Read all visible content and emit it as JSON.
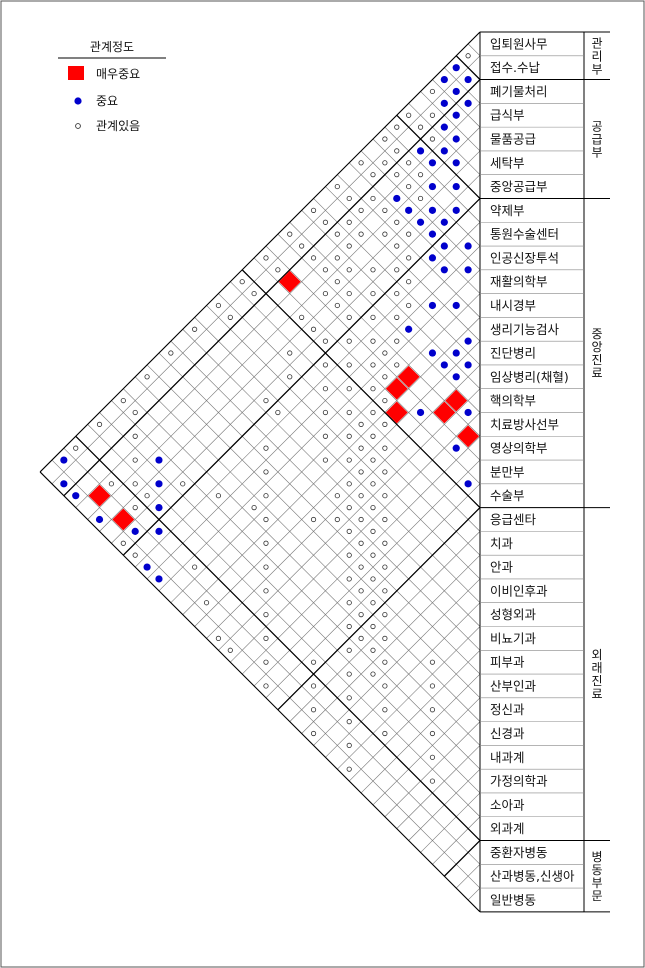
{
  "legend": {
    "title": "관계정도",
    "items": [
      {
        "symbol": "red-diamond",
        "label": "매우중요",
        "color": "#ff0000"
      },
      {
        "symbol": "blue-dot",
        "label": "중요",
        "color": "#0000cc"
      },
      {
        "symbol": "open-circle",
        "label": "관계있음",
        "color": "#333333"
      }
    ]
  },
  "departments": [
    "입퇴원사무",
    "접수.수납",
    "폐기물처리",
    "급식부",
    "물품공급",
    "세탁부",
    "중앙공급부",
    "약제부",
    "통원수술센터",
    "인공신장투석",
    "재활의학부",
    "내시경부",
    "생리기능검사",
    "진단병리",
    "임상병리(채혈)",
    "핵의학부",
    "치료방사선부",
    "영상의학부",
    "분만부",
    "수술부",
    "응급센타",
    "치과",
    "안과",
    "이비인후과",
    "성형외과",
    "비뇨기과",
    "피부과",
    "산부인과",
    "정신과",
    "신경과",
    "내과계",
    "가정의학과",
    "소아과",
    "외과계",
    "중환자병동",
    "산과병동,신생아",
    "일반병동"
  ],
  "groups": [
    {
      "label": "관리부",
      "start": 0,
      "end": 2
    },
    {
      "label": "공급부",
      "start": 2,
      "end": 7
    },
    {
      "label": "중앙진료",
      "start": 7,
      "end": 20
    },
    {
      "label": "외래진료",
      "start": 20,
      "end": 34
    },
    {
      "label": "병동부문",
      "start": 34,
      "end": 37
    }
  ],
  "relations": {
    "very_important": [
      [
        14,
        16
      ],
      [
        16,
        17
      ],
      [
        14,
        17
      ],
      [
        12,
        19
      ],
      [
        11,
        17
      ],
      [
        11,
        18
      ],
      [
        3,
        35
      ],
      [
        5,
        35
      ],
      [
        2,
        18
      ]
    ],
    "important": [
      [
        14,
        13
      ],
      [
        16,
        15
      ],
      [
        16,
        15
      ],
      [
        15,
        11
      ],
      [
        15,
        12
      ],
      [
        13,
        18
      ],
      [
        16,
        14
      ],
      [
        12,
        14
      ],
      [
        13,
        15
      ],
      [
        12,
        13
      ],
      [
        18,
        19
      ],
      [
        16,
        18
      ],
      [
        2,
        5
      ],
      [
        0,
        3
      ],
      [
        1,
        4
      ],
      [
        5,
        9
      ],
      [
        3,
        7
      ],
      [
        4,
        8
      ],
      [
        6,
        9
      ],
      [
        4,
        10
      ],
      [
        7,
        11
      ],
      [
        9,
        13
      ],
      [
        9,
        10
      ],
      [
        10,
        12
      ],
      [
        9,
        15
      ],
      [
        8,
        11
      ],
      [
        5,
        10
      ],
      [
        3,
        6
      ],
      [
        2,
        4
      ],
      [
        3,
        5
      ],
      [
        2,
        3
      ],
      [
        1,
        3
      ],
      [
        0,
        2
      ],
      [
        1,
        2
      ],
      [
        4,
        6
      ],
      [
        6,
        8
      ],
      [
        7,
        10
      ],
      [
        6,
        10
      ],
      [
        5,
        7
      ],
      [
        8,
        9
      ],
      [
        2,
        7
      ],
      [
        3,
        10
      ],
      [
        1,
        36
      ],
      [
        2,
        36
      ],
      [
        4,
        31
      ],
      [
        5,
        32
      ],
      [
        6,
        33
      ],
      [
        7,
        34
      ],
      [
        0,
        35
      ],
      [
        6,
        35
      ],
      [
        4,
        36
      ],
      [
        8,
        36
      ],
      [
        9,
        36
      ]
    ],
    "related": [
      [
        0,
        1
      ],
      [
        1,
        5
      ],
      [
        2,
        6
      ],
      [
        3,
        8
      ],
      [
        4,
        9
      ],
      [
        5,
        11
      ],
      [
        6,
        12
      ],
      [
        7,
        13
      ],
      [
        8,
        14
      ],
      [
        9,
        16
      ],
      [
        10,
        17
      ],
      [
        11,
        19
      ],
      [
        12,
        20
      ],
      [
        13,
        21
      ],
      [
        14,
        22
      ],
      [
        15,
        23
      ],
      [
        16,
        24
      ],
      [
        17,
        25
      ],
      [
        18,
        26
      ],
      [
        19,
        27
      ],
      [
        20,
        28
      ],
      [
        21,
        29
      ],
      [
        22,
        30
      ],
      [
        23,
        31
      ],
      [
        24,
        32
      ],
      [
        25,
        33
      ],
      [
        1,
        8
      ],
      [
        2,
        9
      ],
      [
        3,
        11
      ],
      [
        4,
        12
      ],
      [
        5,
        14
      ],
      [
        6,
        15
      ],
      [
        7,
        16
      ],
      [
        8,
        17
      ],
      [
        9,
        18
      ],
      [
        10,
        19
      ],
      [
        11,
        20
      ],
      [
        12,
        21
      ],
      [
        13,
        22
      ],
      [
        14,
        23
      ],
      [
        15,
        24
      ],
      [
        16,
        25
      ],
      [
        17,
        26
      ],
      [
        18,
        27
      ],
      [
        19,
        28
      ],
      [
        20,
        29
      ],
      [
        21,
        30
      ],
      [
        22,
        31
      ],
      [
        0,
        4
      ],
      [
        1,
        6
      ],
      [
        2,
        8
      ],
      [
        3,
        9
      ],
      [
        4,
        11
      ],
      [
        5,
        12
      ],
      [
        6,
        13
      ],
      [
        7,
        14
      ],
      [
        8,
        15
      ],
      [
        9,
        17
      ],
      [
        10,
        18
      ],
      [
        11,
        21
      ],
      [
        12,
        22
      ],
      [
        13,
        23
      ],
      [
        14,
        24
      ],
      [
        15,
        25
      ],
      [
        16,
        26
      ],
      [
        17,
        27
      ],
      [
        18,
        28
      ],
      [
        19,
        29
      ],
      [
        20,
        30
      ],
      [
        0,
        6
      ],
      [
        0,
        8
      ],
      [
        0,
        10
      ],
      [
        0,
        12
      ],
      [
        0,
        14
      ],
      [
        0,
        16
      ],
      [
        0,
        18
      ],
      [
        0,
        20
      ],
      [
        0,
        22
      ],
      [
        0,
        24
      ],
      [
        0,
        26
      ],
      [
        0,
        28
      ],
      [
        0,
        30
      ],
      [
        0,
        32
      ],
      [
        0,
        34
      ],
      [
        1,
        10
      ],
      [
        1,
        12
      ],
      [
        1,
        14
      ],
      [
        1,
        16
      ],
      [
        1,
        18
      ],
      [
        1,
        20
      ],
      [
        1,
        22
      ],
      [
        2,
        12
      ],
      [
        2,
        14
      ],
      [
        2,
        16
      ],
      [
        3,
        14
      ],
      [
        3,
        16
      ],
      [
        4,
        17
      ],
      [
        4,
        19
      ],
      [
        5,
        19
      ],
      [
        5,
        21
      ],
      [
        6,
        22
      ],
      [
        6,
        24
      ],
      [
        7,
        24
      ],
      [
        8,
        26
      ],
      [
        9,
        27
      ],
      [
        10,
        28
      ],
      [
        11,
        29
      ],
      [
        12,
        30
      ],
      [
        13,
        31
      ],
      [
        14,
        32
      ],
      [
        15,
        33
      ],
      [
        16,
        34
      ],
      [
        17,
        35
      ],
      [
        18,
        36
      ],
      [
        19,
        33
      ],
      [
        20,
        34
      ],
      [
        21,
        35
      ],
      [
        22,
        36
      ],
      [
        24,
        28
      ],
      [
        25,
        29
      ],
      [
        26,
        30
      ],
      [
        27,
        31
      ],
      [
        28,
        32
      ],
      [
        29,
        33
      ],
      [
        3,
        34
      ],
      [
        5,
        33
      ],
      [
        6,
        31
      ],
      [
        8,
        30
      ],
      [
        10,
        29
      ],
      [
        13,
        27
      ],
      [
        14,
        26
      ],
      [
        13,
        25
      ],
      [
        11,
        24
      ],
      [
        10,
        23
      ],
      [
        9,
        22
      ],
      [
        8,
        21
      ],
      [
        7,
        20
      ],
      [
        6,
        19
      ],
      [
        5,
        17
      ],
      [
        4,
        15
      ],
      [
        3,
        13
      ],
      [
        2,
        11
      ],
      [
        1,
        9
      ],
      [
        0,
        7
      ],
      [
        2,
        13
      ],
      [
        3,
        15
      ],
      [
        4,
        16
      ],
      [
        5,
        16
      ],
      [
        6,
        17
      ],
      [
        7,
        18
      ],
      [
        8,
        19
      ],
      [
        9,
        20
      ],
      [
        10,
        21
      ],
      [
        11,
        22
      ],
      [
        12,
        23
      ],
      [
        13,
        24
      ],
      [
        14,
        25
      ],
      [
        15,
        26
      ],
      [
        16,
        27
      ],
      [
        17,
        28
      ],
      [
        18,
        29
      ],
      [
        19,
        30
      ],
      [
        20,
        31
      ],
      [
        21,
        32
      ],
      [
        22,
        33
      ],
      [
        23,
        34
      ],
      [
        24,
        35
      ],
      [
        25,
        36
      ],
      [
        1,
        30
      ],
      [
        2,
        31
      ],
      [
        3,
        32
      ],
      [
        4,
        33
      ],
      [
        5,
        34
      ],
      [
        6,
        36
      ],
      [
        7,
        36
      ],
      [
        10,
        34
      ],
      [
        12,
        35
      ],
      [
        14,
        36
      ],
      [
        15,
        36
      ]
    ]
  }
}
